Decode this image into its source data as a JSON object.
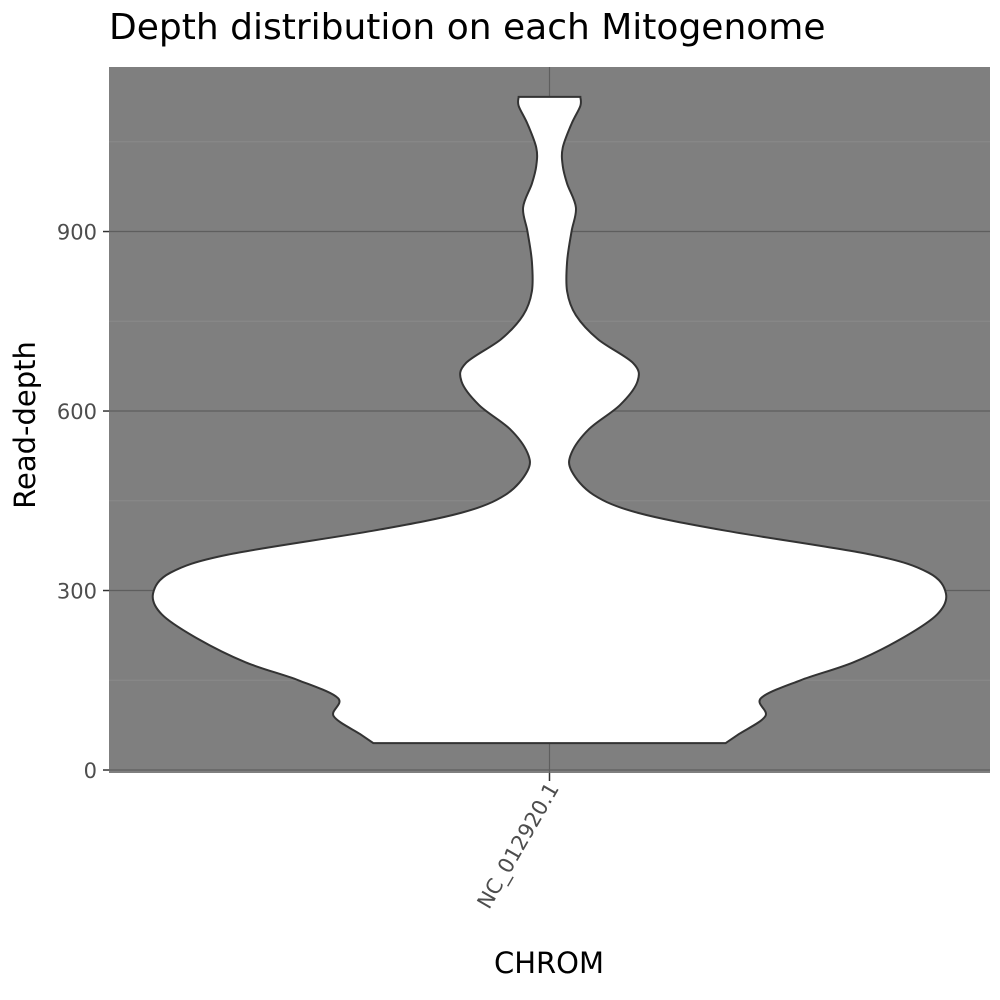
{
  "chart_data": {
    "type": "violin",
    "title": "Depth distribution on each Mitogenome",
    "xlabel": "CHROM",
    "ylabel": "Read-depth",
    "categories": [
      "NC_012920.1"
    ],
    "ylim": [
      -5,
      1175
    ],
    "yticks": [
      0,
      300,
      600,
      900
    ],
    "grid": true,
    "panel_color": "#7f7f7f",
    "violin_fill": "#ffffff",
    "violin_outline": "#333333",
    "series": [
      {
        "category": "NC_012920.1",
        "density": [
          {
            "y": 45,
            "w": 0.4
          },
          {
            "y": 60,
            "w": 0.43
          },
          {
            "y": 90,
            "w": 0.49
          },
          {
            "y": 120,
            "w": 0.48
          },
          {
            "y": 150,
            "w": 0.57
          },
          {
            "y": 180,
            "w": 0.69
          },
          {
            "y": 220,
            "w": 0.8
          },
          {
            "y": 260,
            "w": 0.88
          },
          {
            "y": 295,
            "w": 0.9
          },
          {
            "y": 330,
            "w": 0.86
          },
          {
            "y": 360,
            "w": 0.73
          },
          {
            "y": 400,
            "w": 0.4
          },
          {
            "y": 430,
            "w": 0.2
          },
          {
            "y": 460,
            "w": 0.1
          },
          {
            "y": 500,
            "w": 0.05
          },
          {
            "y": 530,
            "w": 0.05
          },
          {
            "y": 570,
            "w": 0.09
          },
          {
            "y": 610,
            "w": 0.16
          },
          {
            "y": 650,
            "w": 0.2
          },
          {
            "y": 680,
            "w": 0.19
          },
          {
            "y": 720,
            "w": 0.11
          },
          {
            "y": 760,
            "w": 0.06
          },
          {
            "y": 800,
            "w": 0.04
          },
          {
            "y": 850,
            "w": 0.04
          },
          {
            "y": 900,
            "w": 0.05
          },
          {
            "y": 940,
            "w": 0.06
          },
          {
            "y": 980,
            "w": 0.04
          },
          {
            "y": 1010,
            "w": 0.03
          },
          {
            "y": 1040,
            "w": 0.03
          },
          {
            "y": 1080,
            "w": 0.05
          },
          {
            "y": 1110,
            "w": 0.07
          },
          {
            "y": 1125,
            "w": 0.07
          }
        ]
      }
    ]
  }
}
